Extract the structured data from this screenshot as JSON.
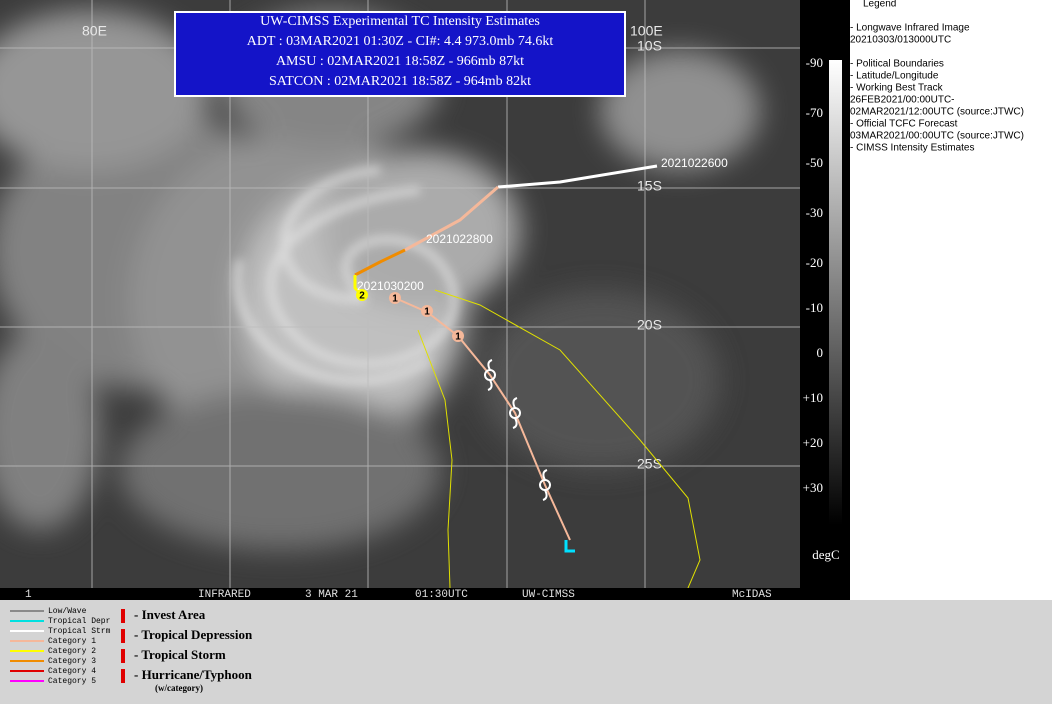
{
  "header": {
    "lines": [
      "UW-CIMSS Experimental TC Intensity Estimates",
      "ADT : 03MAR2021 01:30Z  -  CI#: 4.4   973.0mb   74.6kt",
      "AMSU : 02MAR2021 18:58Z  -  966mb  87kt",
      "SATCON : 02MAR2021 18:58Z  -  964mb  82kt"
    ]
  },
  "grid_labels": {
    "lon": [
      "80E",
      "100E"
    ],
    "lat": [
      "10S",
      "15S",
      "20S",
      "25S"
    ]
  },
  "track": {
    "dates": [
      "2021022600",
      "2021022800",
      "2021030200"
    ],
    "forecast_marks": [
      "2",
      "1",
      "1",
      "1"
    ]
  },
  "status_bar": [
    "1",
    "INFRARED",
    "3 MAR 21",
    "01:30UTC",
    "UW-CIMSS",
    "McIDAS"
  ],
  "colorbar": {
    "labels": [
      "-90",
      "-70",
      "-50",
      "-30",
      "-20",
      "-10",
      "0",
      "+10",
      "+20",
      "+30"
    ],
    "unit": "degC"
  },
  "legend_panel": {
    "title": "Legend",
    "lines": [
      "-  Longwave Infrared Image",
      "20210303/013000UTC",
      "-  Political Boundaries",
      "-  Latitude/Longitude",
      "-  Working Best Track",
      "26FEB2021/00:00UTC-",
      "02MAR2021/12:00UTC   (source:JTWC)",
      "-  Official TCFC Forecast",
      "03MAR2021/00:00UTC  (source:JTWC)",
      "-  CIMSS Intensity Estimates"
    ]
  },
  "line_legend": [
    "Low/Wave",
    "Tropical Depr",
    "Tropical Strm",
    "Category 1",
    "Category 2",
    "Category 3",
    "Category 4",
    "Category 5"
  ],
  "symbol_legend": {
    "items": [
      "- Invest Area",
      "- Tropical Depression",
      "- Tropical Storm",
      "- Hurricane/Typhoon"
    ],
    "note": "(w/category)"
  }
}
